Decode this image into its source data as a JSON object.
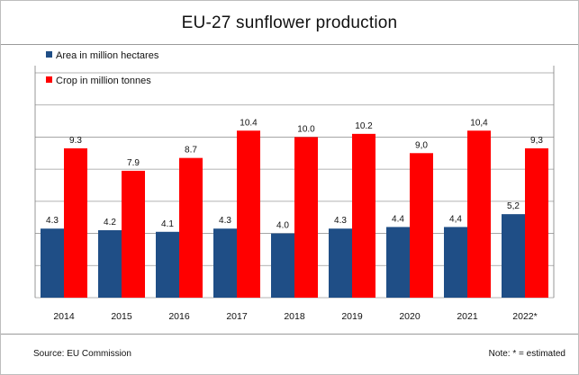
{
  "chart_data": {
    "type": "bar",
    "title": "EU-27 sunflower production",
    "categories": [
      "2014",
      "2015",
      "2016",
      "2017",
      "2018",
      "2019",
      "2020",
      "2021",
      "2022*"
    ],
    "series": [
      {
        "name": "Area in million hectares",
        "color": "#1f4e86",
        "values": [
          4.3,
          4.2,
          4.1,
          4.3,
          4.0,
          4.3,
          4.4,
          4.4,
          5.2
        ],
        "labels": [
          "4.3",
          "4.2",
          "4.1",
          "4.3",
          "4.0",
          "4.3",
          "4.4",
          "4,4",
          "5,2"
        ]
      },
      {
        "name": "Crop in million tonnes",
        "color": "#ff0000",
        "values": [
          9.3,
          7.9,
          8.7,
          10.4,
          10.0,
          10.2,
          9.0,
          10.4,
          9.3
        ],
        "labels": [
          "9.3",
          "7.9",
          "8.7",
          "10.4",
          "10.0",
          "10.2",
          "9,0",
          "10,4",
          "9,3"
        ]
      }
    ],
    "ylim": [
      0,
      14
    ],
    "grid": true,
    "legend": "top-left"
  },
  "footer": {
    "source": "Source:  EU Commission",
    "note": "Note: * = estimated"
  }
}
